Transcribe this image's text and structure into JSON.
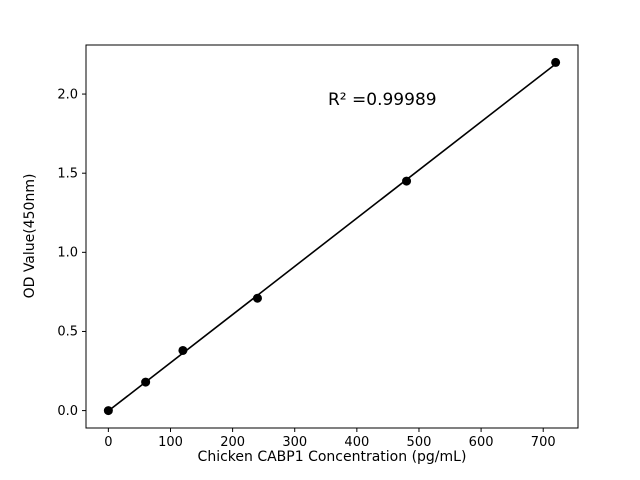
{
  "chart_data": {
    "type": "scatter",
    "title": "",
    "xlabel": "Chicken CABP1 Concentration (pg/mL)",
    "ylabel": "OD Value(450nm)",
    "annotation": "R² =0.99989",
    "x": [
      0,
      60,
      120,
      240,
      480,
      720
    ],
    "y": [
      0.0,
      0.18,
      0.38,
      0.71,
      1.45,
      2.2
    ],
    "fit_line": true,
    "xlim": [
      -36,
      756
    ],
    "ylim": [
      -0.11,
      2.31
    ],
    "x_ticks": [
      0,
      100,
      200,
      300,
      400,
      500,
      600,
      700
    ],
    "x_tick_labels": [
      "0",
      "100",
      "200",
      "300",
      "400",
      "500",
      "600",
      "700"
    ],
    "y_ticks": [
      0.0,
      0.5,
      1.0,
      1.5,
      2.0
    ],
    "y_tick_labels": [
      "0.0",
      "0.5",
      "1.0",
      "1.5",
      "2.0"
    ],
    "grid": false,
    "legend": "none",
    "marker_color": "#000000",
    "line_color": "#000000",
    "background_color": "#ffffff"
  }
}
